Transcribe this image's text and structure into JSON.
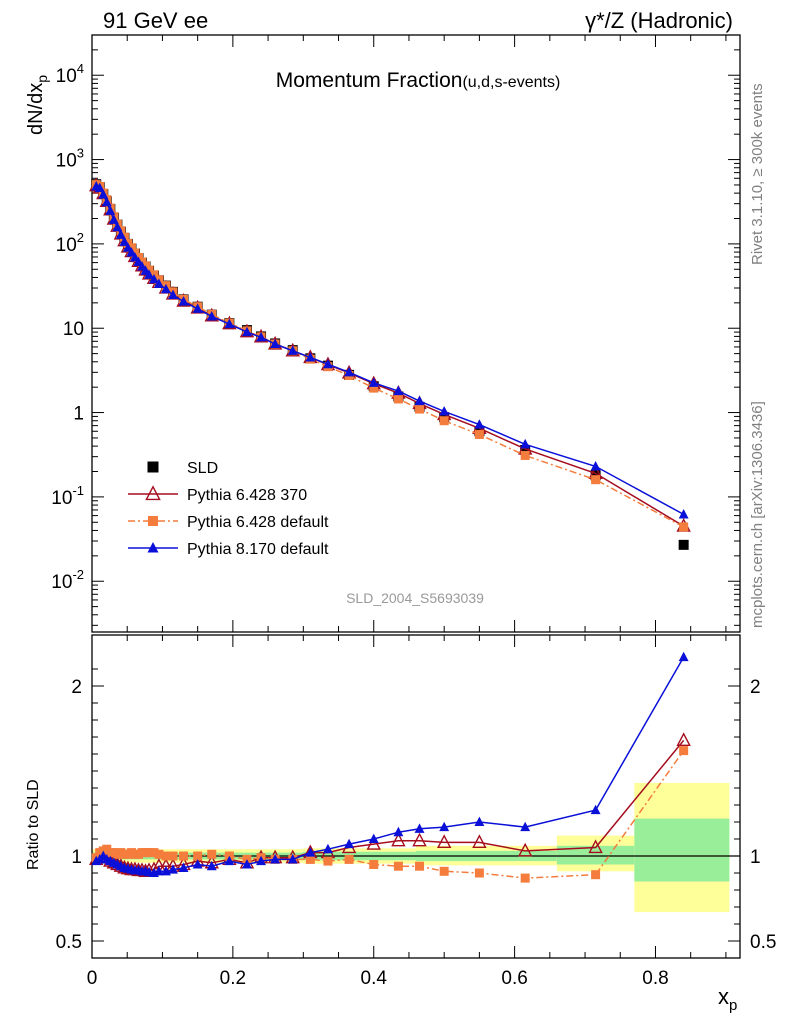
{
  "header": {
    "left_label": "91 GeV ee",
    "right_label": "γ*/Z (Hadronic)"
  },
  "side_text": {
    "rivet": "Rivet 3.1.10, ≥ 300k events",
    "source": "mcplots.cern.ch [arXiv:1306.3436]"
  },
  "watermark": "SLD_2004_S5693039",
  "chart_data": [
    {
      "type": "line",
      "title": "Momentum Fraction",
      "subtitle": "(u,d,s-events)",
      "ylabel": "dN/dx_p",
      "yscale": "log",
      "ylim": [
        0.0025,
        30000
      ],
      "xlim": [
        0,
        0.92
      ],
      "y_ticks": [
        {
          "v": 0.01,
          "label": "10^-2"
        },
        {
          "v": 0.1,
          "label": "10^-1"
        },
        {
          "v": 1,
          "label": "1"
        },
        {
          "v": 10,
          "label": "10"
        },
        {
          "v": 100,
          "label": "10^2"
        },
        {
          "v": 1000,
          "label": "10^3"
        },
        {
          "v": 10000,
          "label": "10^4"
        }
      ],
      "legend_position": "lower-left",
      "series": [
        {
          "name": "SLD",
          "color": "#000000",
          "marker": "square",
          "x": [
            0.006,
            0.011,
            0.016,
            0.021,
            0.026,
            0.031,
            0.036,
            0.041,
            0.046,
            0.051,
            0.056,
            0.061,
            0.066,
            0.071,
            0.076,
            0.081,
            0.088,
            0.095,
            0.105,
            0.115,
            0.13,
            0.15,
            0.17,
            0.195,
            0.22,
            0.24,
            0.26,
            0.285,
            0.31,
            0.335,
            0.365,
            0.4,
            0.435,
            0.465,
            0.5,
            0.55,
            0.615,
            0.715,
            0.84
          ],
          "y": [
            510,
            470,
            390,
            320,
            260,
            205,
            170,
            140,
            118,
            100,
            88,
            77,
            68,
            60,
            54,
            48,
            42,
            37,
            32,
            27,
            22,
            18,
            14.5,
            11.5,
            9.5,
            8,
            6.6,
            5.5,
            4.4,
            3.6,
            2.8,
            2.05,
            1.55,
            1.17,
            0.88,
            0.6,
            0.36,
            0.18,
            0.027
          ]
        },
        {
          "name": "Pythia 6.428 370",
          "color": "#a50d1e",
          "marker": "open-triangle",
          "x": [
            0.006,
            0.011,
            0.016,
            0.021,
            0.026,
            0.031,
            0.036,
            0.041,
            0.046,
            0.051,
            0.056,
            0.061,
            0.066,
            0.071,
            0.076,
            0.081,
            0.088,
            0.095,
            0.105,
            0.115,
            0.13,
            0.15,
            0.17,
            0.195,
            0.22,
            0.24,
            0.26,
            0.285,
            0.31,
            0.335,
            0.365,
            0.4,
            0.435,
            0.465,
            0.5,
            0.55,
            0.615,
            0.715,
            0.84
          ],
          "y": [
            490,
            460,
            395,
            320,
            253,
            197,
            162,
            131,
            109,
            92,
            81,
            71,
            62,
            55,
            49,
            44,
            39,
            35,
            30,
            25.5,
            21,
            17.4,
            14,
            11.3,
            9.1,
            7.9,
            6.5,
            5.4,
            4.5,
            3.7,
            2.95,
            2.2,
            1.7,
            1.28,
            0.95,
            0.65,
            0.37,
            0.19,
            0.045
          ]
        },
        {
          "name": "Pythia 6.428 default",
          "color": "#f47c3c",
          "marker": "square",
          "dash": true,
          "x": [
            0.006,
            0.011,
            0.016,
            0.021,
            0.026,
            0.031,
            0.036,
            0.041,
            0.046,
            0.051,
            0.056,
            0.061,
            0.066,
            0.071,
            0.076,
            0.081,
            0.088,
            0.095,
            0.105,
            0.115,
            0.13,
            0.15,
            0.17,
            0.195,
            0.22,
            0.24,
            0.26,
            0.285,
            0.31,
            0.335,
            0.365,
            0.4,
            0.435,
            0.465,
            0.5,
            0.55,
            0.615,
            0.715,
            0.84
          ],
          "y": [
            505,
            480,
            400,
            335,
            265,
            210,
            172,
            143,
            120,
            101,
            90,
            78,
            69,
            61,
            55,
            49,
            43,
            37.5,
            32,
            27,
            22,
            18,
            14.6,
            11.5,
            9.3,
            7.9,
            6.5,
            5.4,
            4.3,
            3.5,
            2.75,
            1.95,
            1.45,
            1.1,
            0.8,
            0.55,
            0.31,
            0.16,
            0.044
          ]
        },
        {
          "name": "Pythia 8.170 default",
          "color": "#0a10d8",
          "marker": "filled-triangle",
          "x": [
            0.006,
            0.011,
            0.016,
            0.021,
            0.026,
            0.031,
            0.036,
            0.041,
            0.046,
            0.051,
            0.056,
            0.061,
            0.066,
            0.071,
            0.076,
            0.081,
            0.088,
            0.095,
            0.105,
            0.115,
            0.13,
            0.15,
            0.17,
            0.195,
            0.22,
            0.24,
            0.26,
            0.285,
            0.31,
            0.335,
            0.365,
            0.4,
            0.435,
            0.465,
            0.5,
            0.55,
            0.615,
            0.715,
            0.84
          ],
          "y": [
            480,
            460,
            385,
            312,
            247,
            193,
            158,
            128,
            106,
            90,
            79,
            69,
            61,
            54,
            48,
            43,
            38,
            33.5,
            29,
            24.8,
            20.7,
            17,
            13.8,
            11.2,
            9.0,
            7.8,
            6.5,
            5.4,
            4.5,
            3.75,
            3.0,
            2.25,
            1.8,
            1.37,
            1.03,
            0.72,
            0.42,
            0.23,
            0.062
          ]
        }
      ]
    },
    {
      "type": "line",
      "title": "",
      "ylabel": "Ratio to SLD",
      "xlabel": "x_p",
      "ylim": [
        0.4,
        2.3
      ],
      "xlim": [
        0,
        0.92
      ],
      "y_ticks": [
        {
          "v": 0.5,
          "label": "0.5"
        },
        {
          "v": 1,
          "label": "1"
        },
        {
          "v": 2,
          "label": "2"
        }
      ],
      "x_ticks": [
        {
          "v": 0,
          "label": "0"
        },
        {
          "v": 0.2,
          "label": "0.2"
        },
        {
          "v": 0.4,
          "label": "0.4"
        },
        {
          "v": 0.6,
          "label": "0.6"
        },
        {
          "v": 0.8,
          "label": "0.8"
        }
      ],
      "uncertainty_bands": [
        {
          "x0": 0.0,
          "x1": 0.3,
          "stat": [
            0.98,
            1.02
          ],
          "total": [
            0.96,
            1.04
          ]
        },
        {
          "x0": 0.3,
          "x1": 0.46,
          "stat": [
            0.975,
            1.025
          ],
          "total": [
            0.955,
            1.045
          ]
        },
        {
          "x0": 0.46,
          "x1": 0.66,
          "stat": [
            0.97,
            1.03
          ],
          "total": [
            0.945,
            1.06
          ]
        },
        {
          "x0": 0.66,
          "x1": 0.77,
          "stat": [
            0.95,
            1.06
          ],
          "total": [
            0.91,
            1.12
          ]
        },
        {
          "x0": 0.77,
          "x1": 0.905,
          "stat": [
            0.85,
            1.22
          ],
          "total": [
            0.67,
            1.43
          ]
        }
      ],
      "series": [
        {
          "name": "Pythia 6.428 370",
          "color": "#a50d1e",
          "marker": "open-triangle",
          "x": [
            0.006,
            0.011,
            0.016,
            0.021,
            0.026,
            0.031,
            0.036,
            0.041,
            0.046,
            0.051,
            0.056,
            0.061,
            0.066,
            0.071,
            0.076,
            0.081,
            0.088,
            0.095,
            0.105,
            0.115,
            0.13,
            0.15,
            0.17,
            0.195,
            0.22,
            0.24,
            0.26,
            0.285,
            0.31,
            0.335,
            0.365,
            0.4,
            0.435,
            0.465,
            0.5,
            0.55,
            0.615,
            0.715,
            0.84
          ],
          "y": [
            0.98,
            0.99,
            1.01,
            1.0,
            0.97,
            0.96,
            0.95,
            0.94,
            0.93,
            0.925,
            0.92,
            0.92,
            0.915,
            0.915,
            0.91,
            0.915,
            0.92,
            0.94,
            0.94,
            0.94,
            0.95,
            0.97,
            0.96,
            0.98,
            0.96,
            0.99,
            0.99,
            0.99,
            1.02,
            1.02,
            1.05,
            1.07,
            1.09,
            1.09,
            1.08,
            1.08,
            1.03,
            1.05,
            1.68
          ]
        },
        {
          "name": "Pythia 6.428 default",
          "color": "#f47c3c",
          "marker": "square",
          "dash": true,
          "x": [
            0.006,
            0.011,
            0.016,
            0.021,
            0.026,
            0.031,
            0.036,
            0.041,
            0.046,
            0.051,
            0.056,
            0.061,
            0.066,
            0.071,
            0.076,
            0.081,
            0.088,
            0.095,
            0.105,
            0.115,
            0.13,
            0.15,
            0.17,
            0.195,
            0.22,
            0.24,
            0.26,
            0.285,
            0.31,
            0.335,
            0.365,
            0.4,
            0.435,
            0.465,
            0.5,
            0.55,
            0.615,
            0.715,
            0.84
          ],
          "y": [
            0.99,
            1.02,
            1.03,
            1.04,
            1.02,
            1.02,
            1.01,
            1.02,
            1.01,
            1.01,
            1.02,
            1.01,
            1.01,
            1.02,
            1.02,
            1.02,
            1.02,
            1.01,
            1.0,
            1.0,
            1.0,
            1.0,
            1.01,
            1.0,
            0.98,
            0.99,
            0.98,
            0.98,
            0.98,
            0.97,
            0.98,
            0.95,
            0.94,
            0.94,
            0.91,
            0.9,
            0.87,
            0.89,
            1.62
          ]
        },
        {
          "name": "Pythia 8.170 default",
          "color": "#0a10d8",
          "marker": "filled-triangle",
          "x": [
            0.006,
            0.011,
            0.016,
            0.021,
            0.026,
            0.031,
            0.036,
            0.041,
            0.046,
            0.051,
            0.056,
            0.061,
            0.066,
            0.071,
            0.076,
            0.081,
            0.088,
            0.095,
            0.105,
            0.115,
            0.13,
            0.15,
            0.17,
            0.195,
            0.22,
            0.24,
            0.26,
            0.285,
            0.31,
            0.335,
            0.365,
            0.4,
            0.435,
            0.465,
            0.5,
            0.55,
            0.615,
            0.715,
            0.84
          ],
          "y": [
            0.97,
            0.98,
            1.0,
            0.98,
            0.97,
            0.96,
            0.95,
            0.94,
            0.93,
            0.925,
            0.92,
            0.915,
            0.915,
            0.91,
            0.91,
            0.905,
            0.9,
            0.91,
            0.91,
            0.92,
            0.93,
            0.95,
            0.94,
            0.97,
            0.95,
            0.97,
            0.98,
            0.98,
            1.02,
            1.04,
            1.07,
            1.1,
            1.14,
            1.16,
            1.17,
            1.2,
            1.17,
            1.27,
            2.17
          ]
        }
      ]
    }
  ]
}
